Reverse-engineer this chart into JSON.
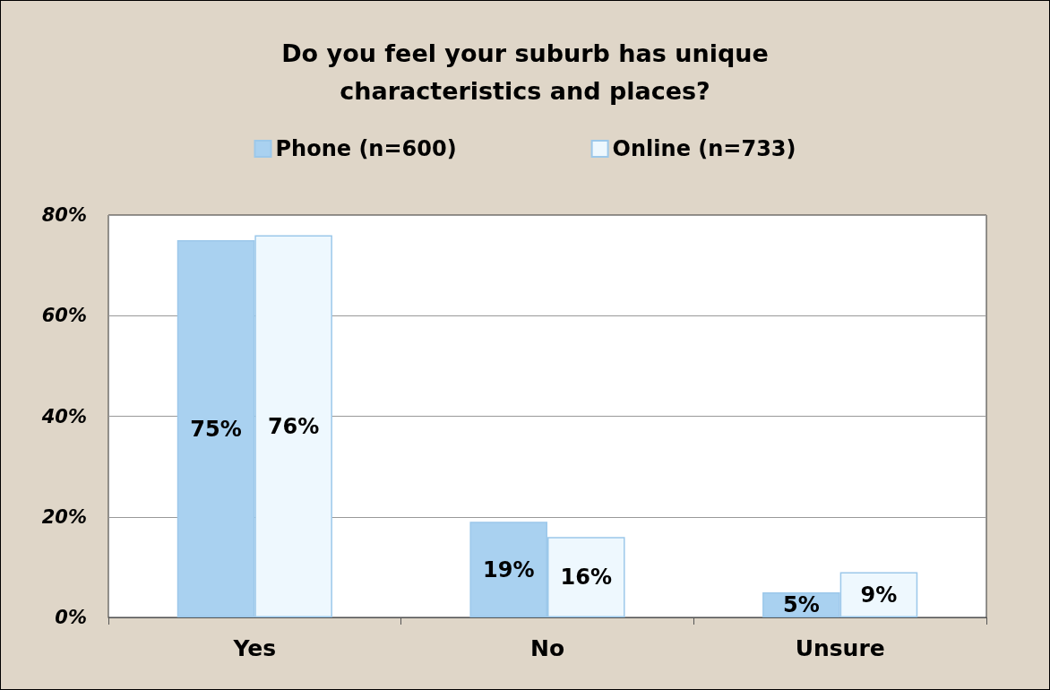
{
  "chart_data": {
    "type": "bar",
    "title": "Do you feel your suburb has unique\ncharacteristics and places?",
    "categories": [
      "Yes",
      "No",
      "Unsure"
    ],
    "series": [
      {
        "name": "Phone (n=600)",
        "color": "#a9d1f0",
        "values": [
          75,
          19,
          5
        ],
        "value_labels": [
          "75%",
          "19%",
          "5%"
        ]
      },
      {
        "name": "Online (n=733)",
        "color": "#eef8fe",
        "values": [
          76,
          16,
          9
        ],
        "value_labels": [
          "76%",
          "16%",
          "9%"
        ]
      }
    ],
    "ylim": [
      0,
      80
    ],
    "yticks": [
      {
        "value": 0,
        "label": "0%"
      },
      {
        "value": 20,
        "label": "20%"
      },
      {
        "value": 40,
        "label": "40%"
      },
      {
        "value": 60,
        "label": "60%"
      },
      {
        "value": 80,
        "label": "80%"
      }
    ],
    "grid": "y",
    "legend": "top"
  }
}
